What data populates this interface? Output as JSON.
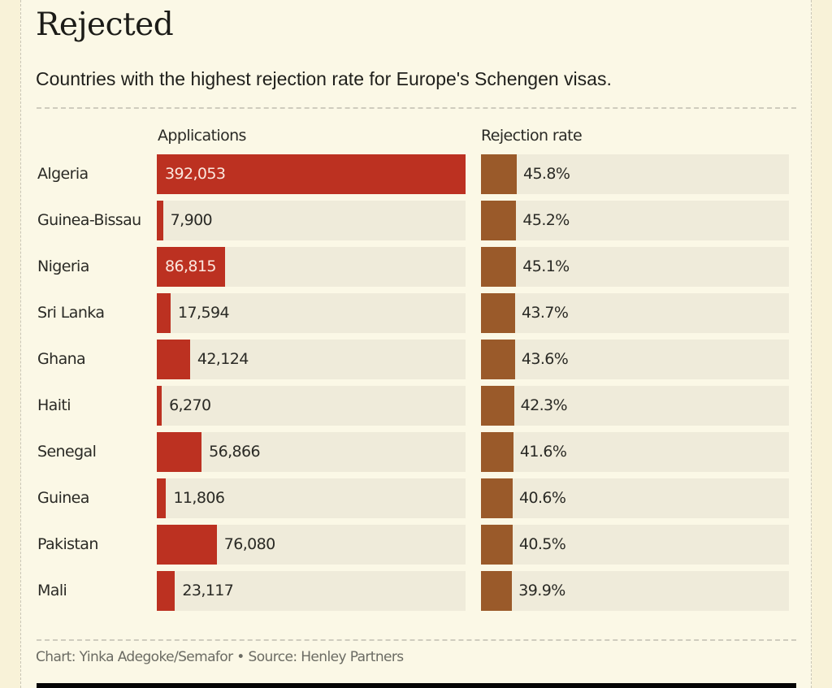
{
  "header": {
    "title": "Rejected",
    "subtitle": "Countries with the highest rejection rate for Europe's Schengen visas."
  },
  "colors": {
    "applications_bar": "#bc3121",
    "rejection_bar": "#9a5a2a",
    "track": "#efebda",
    "background": "#fbf8e6"
  },
  "chart_data": {
    "type": "bar",
    "orientation": "horizontal",
    "title": "Rejected",
    "subtitle": "Countries with the highest rejection rate for Europe's Schengen visas.",
    "categories": [
      "Algeria",
      "Guinea-Bissau",
      "Nigeria",
      "Sri Lanka",
      "Ghana",
      "Haiti",
      "Senegal",
      "Guinea",
      "Pakistan",
      "Mali"
    ],
    "series": [
      {
        "name": "Applications",
        "values": [
          392053,
          7900,
          86815,
          17594,
          42124,
          6270,
          56866,
          11806,
          76080,
          23117
        ],
        "labels": [
          "392,053",
          "7,900",
          "86,815",
          "17,594",
          "42,124",
          "6,270",
          "56,866",
          "11,806",
          "76,080",
          "23,117"
        ]
      },
      {
        "name": "Rejection rate",
        "unit": "%",
        "values": [
          45.8,
          45.2,
          45.1,
          43.7,
          43.6,
          42.3,
          41.6,
          40.6,
          40.5,
          39.9
        ],
        "labels": [
          "45.8%",
          "45.2%",
          "45.1%",
          "43.7%",
          "43.6%",
          "42.3%",
          "41.6%",
          "40.6%",
          "40.5%",
          "39.9%"
        ]
      }
    ],
    "legend": "none",
    "grid": false
  },
  "footer": {
    "credit": "Chart: Yinka Adegoke/Semafor • Source: Henley Partners"
  }
}
